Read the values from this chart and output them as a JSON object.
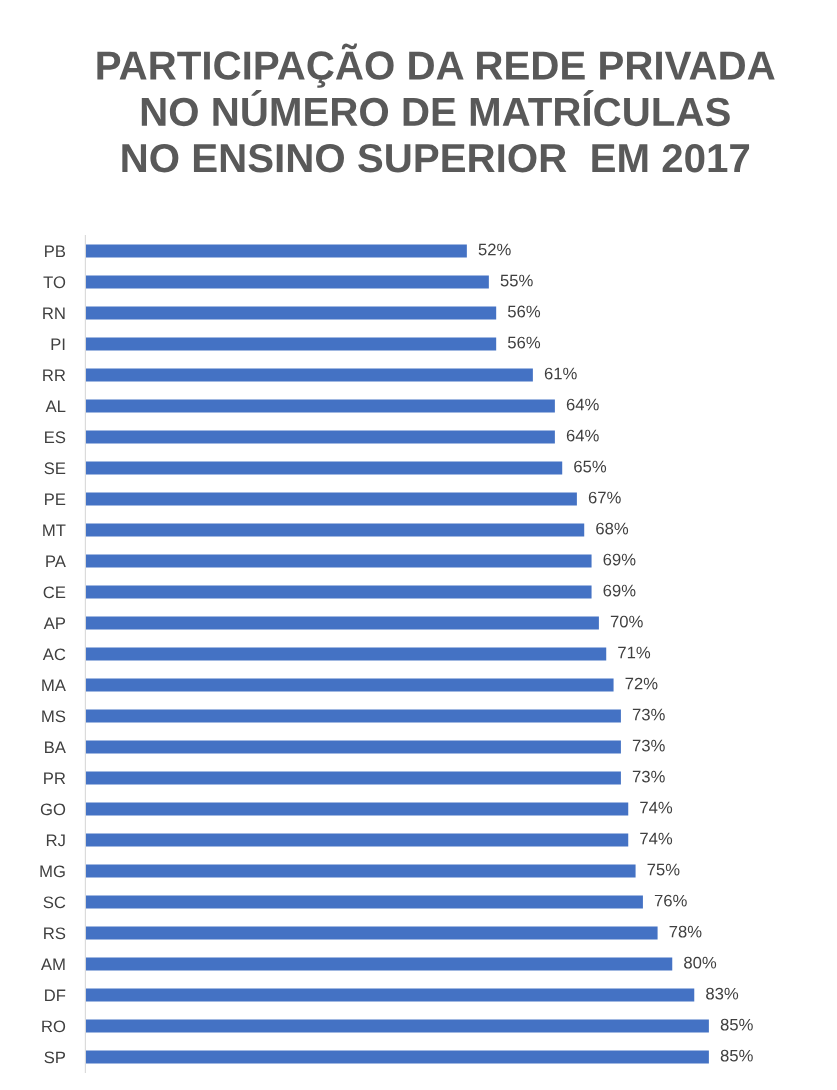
{
  "chart_data": {
    "type": "bar",
    "orientation": "horizontal",
    "title": "PARTICIPAÇÃO DA REDE PRIVADA\nNO NÚMERO DE MATRÍCULAS\nNO ENSINO SUPERIOR  EM 2017",
    "categories": [
      "PB",
      "TO",
      "RN",
      "PI",
      "RR",
      "AL",
      "ES",
      "SE",
      "PE",
      "MT",
      "PA",
      "CE",
      "AP",
      "AC",
      "MA",
      "MS",
      "BA",
      "PR",
      "GO",
      "RJ",
      "MG",
      "SC",
      "RS",
      "AM",
      "DF",
      "RO",
      "SP"
    ],
    "values": [
      52,
      55,
      56,
      56,
      61,
      64,
      64,
      65,
      67,
      68,
      69,
      69,
      70,
      71,
      72,
      73,
      73,
      73,
      74,
      74,
      75,
      76,
      78,
      80,
      83,
      85,
      85
    ],
    "value_labels": [
      "52%",
      "55%",
      "56%",
      "56%",
      "61%",
      "64%",
      "64%",
      "65%",
      "67%",
      "68%",
      "69%",
      "69%",
      "70%",
      "71%",
      "72%",
      "73%",
      "73%",
      "73%",
      "74%",
      "74%",
      "75%",
      "76%",
      "78%",
      "80%",
      "83%",
      "85%",
      "85%"
    ],
    "color": "#4472c4",
    "tick_labels": "y",
    "grid": false,
    "legend": false
  }
}
